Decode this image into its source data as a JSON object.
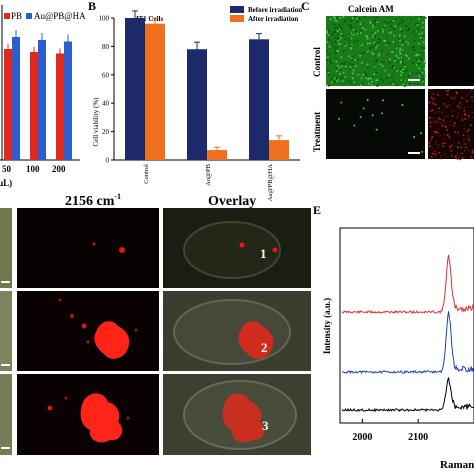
{
  "panelA": {
    "legend": [
      "PB",
      "Au@PB@HA"
    ],
    "ticks": [
      "50",
      "100",
      "200"
    ],
    "xlabel_fragment": "μL)",
    "colors": {
      "series1": "#e02a1f",
      "series2": "#2b5fd0"
    },
    "bars": [
      {
        "pb": 0.74,
        "au": 0.82
      },
      {
        "pb": 0.72,
        "au": 0.8
      },
      {
        "pb": 0.71,
        "au": 0.79
      }
    ]
  },
  "panelB": {
    "label": "B",
    "chart_data": {
      "type": "bar",
      "title": "4T1 Cells",
      "ylabel": "Cell viability (%)",
      "ylim": [
        0,
        100
      ],
      "yticks": [
        "0",
        "20",
        "40",
        "60",
        "80",
        "100"
      ],
      "categories": [
        "Control",
        "Au@PB",
        "Au@PB@HA"
      ],
      "series": [
        {
          "name": "Before irradiation",
          "color": "#1c2a6b",
          "values": [
            100,
            78,
            85
          ],
          "err": [
            5,
            5,
            4
          ]
        },
        {
          "name": "After irradiation",
          "color": "#f07020",
          "values": [
            96,
            7,
            14
          ],
          "err": [
            4,
            2,
            3
          ]
        }
      ],
      "legend_position": "top-right"
    }
  },
  "panelC": {
    "label": "C",
    "column_header": "Calcein AM",
    "row_labels": [
      "Control",
      "Treatment"
    ]
  },
  "panelD": {
    "header_raman": "2156 cm",
    "header_raman_sup": "-1",
    "header_overlay": "Overlay",
    "cell_numbers": [
      "1",
      "2",
      "3"
    ]
  },
  "panelE": {
    "label": "E",
    "chart_data": {
      "type": "line",
      "ylabel": "Intensity (a.u.)",
      "xlabel": "Raman",
      "xticks": [
        "2000",
        "2100"
      ],
      "xlim": [
        1960,
        2200
      ],
      "series": [
        {
          "color": "#e03030",
          "peak_at": 2155
        },
        {
          "color": "#2040c0",
          "peak_at": 2155
        },
        {
          "color": "#000000",
          "peak_at": 2155
        }
      ]
    }
  }
}
